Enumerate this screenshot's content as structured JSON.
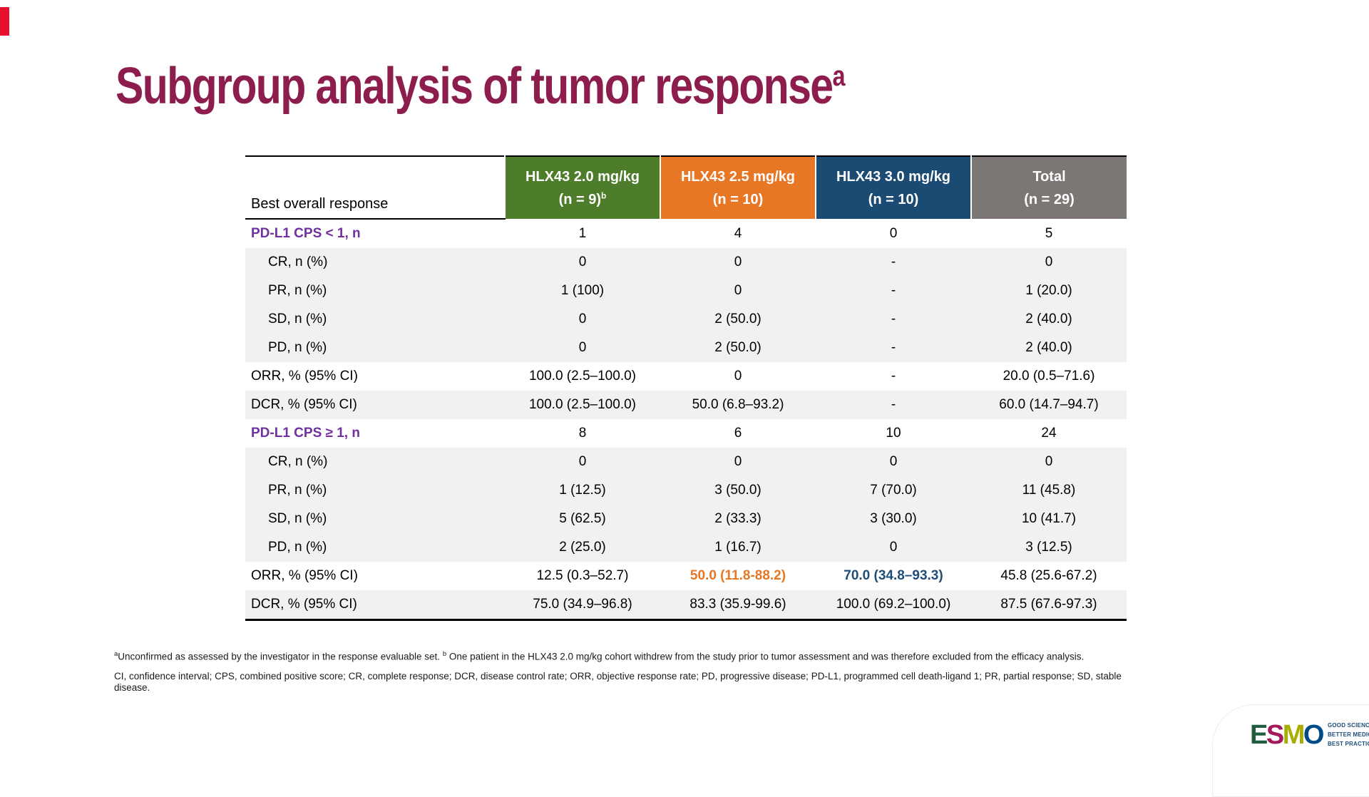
{
  "slide": {
    "title": "Subgroup analysis of tumor response",
    "title_superscript": "a",
    "title_color": "#8d1d4d",
    "accent_bar_color": "#e8112d"
  },
  "table": {
    "label_header": "Best overall response",
    "columns": [
      {
        "name": "HLX43 2.0 mg/kg",
        "n_label": "(n = 9)",
        "n_superscript": "b",
        "bg": "#4d7c2b"
      },
      {
        "name": "HLX43 2.5 mg/kg",
        "n_label": "(n = 10)",
        "n_superscript": "",
        "bg": "#e87725"
      },
      {
        "name": "HLX43 3.0 mg/kg",
        "n_label": "(n = 10)",
        "n_superscript": "",
        "bg": "#1b4a73"
      },
      {
        "name": "Total",
        "n_label": "(n = 29)",
        "n_superscript": "",
        "bg": "#7c7775"
      }
    ],
    "group_label_color": "#7030a0",
    "shaded_row_color": "#f1f1f1",
    "highlight_colors": {
      "orange": "#e87725",
      "blue": "#1f4e79"
    },
    "rows": [
      {
        "label": "PD-L1 CPS < 1, n",
        "type": "group",
        "shaded": false,
        "values": [
          "1",
          "4",
          "0",
          "5"
        ],
        "styles": [
          "",
          "",
          "",
          ""
        ]
      },
      {
        "label": "CR, n (%)",
        "type": "sub",
        "shaded": true,
        "values": [
          "0",
          "0",
          "-",
          "0"
        ],
        "styles": [
          "",
          "",
          "",
          ""
        ]
      },
      {
        "label": "PR, n (%)",
        "type": "sub",
        "shaded": true,
        "values": [
          "1 (100)",
          "0",
          "-",
          "1 (20.0)"
        ],
        "styles": [
          "",
          "",
          "",
          ""
        ]
      },
      {
        "label": "SD, n (%)",
        "type": "sub",
        "shaded": true,
        "values": [
          "0",
          "2 (50.0)",
          "-",
          "2 (40.0)"
        ],
        "styles": [
          "",
          "",
          "",
          ""
        ]
      },
      {
        "label": "PD, n (%)",
        "type": "sub",
        "shaded": true,
        "values": [
          "0",
          "2 (50.0)",
          "-",
          "2 (40.0)"
        ],
        "styles": [
          "",
          "",
          "",
          ""
        ]
      },
      {
        "label": "ORR, % (95% CI)",
        "type": "stat",
        "shaded": false,
        "values": [
          "100.0 (2.5–100.0)",
          "0",
          "-",
          "20.0 (0.5–71.6)"
        ],
        "styles": [
          "",
          "",
          "",
          ""
        ]
      },
      {
        "label": "DCR, % (95% CI)",
        "type": "stat",
        "shaded": true,
        "values": [
          "100.0 (2.5–100.0)",
          "50.0 (6.8–93.2)",
          "-",
          "60.0 (14.7–94.7)"
        ],
        "styles": [
          "",
          "",
          "",
          ""
        ]
      },
      {
        "label": "PD-L1 CPS ≥ 1, n",
        "type": "group",
        "shaded": false,
        "values": [
          "8",
          "6",
          "10",
          "24"
        ],
        "styles": [
          "",
          "",
          "",
          ""
        ]
      },
      {
        "label": "CR, n (%)",
        "type": "sub",
        "shaded": true,
        "values": [
          "0",
          "0",
          "0",
          "0"
        ],
        "styles": [
          "",
          "",
          "",
          ""
        ]
      },
      {
        "label": "PR, n (%)",
        "type": "sub",
        "shaded": true,
        "values": [
          "1 (12.5)",
          "3 (50.0)",
          "7 (70.0)",
          "11 (45.8)"
        ],
        "styles": [
          "",
          "",
          "",
          ""
        ]
      },
      {
        "label": "SD, n (%)",
        "type": "sub",
        "shaded": true,
        "values": [
          "5 (62.5)",
          "2 (33.3)",
          "3 (30.0)",
          "10 (41.7)"
        ],
        "styles": [
          "",
          "",
          "",
          ""
        ]
      },
      {
        "label": "PD, n (%)",
        "type": "sub",
        "shaded": true,
        "values": [
          "2 (25.0)",
          "1 (16.7)",
          "0",
          "3 (12.5)"
        ],
        "styles": [
          "",
          "",
          "",
          ""
        ]
      },
      {
        "label": "ORR, % (95% CI)",
        "type": "stat",
        "shaded": false,
        "values": [
          "12.5 (0.3–52.7)",
          "50.0 (11.8-88.2)",
          "70.0 (34.8–93.3)",
          "45.8 (25.6-67.2)"
        ],
        "styles": [
          "",
          "orange",
          "blue",
          ""
        ]
      },
      {
        "label": "DCR, % (95% CI)",
        "type": "stat",
        "shaded": true,
        "values": [
          "75.0 (34.9–96.8)",
          "83.3 (35.9-99.6)",
          "100.0 (69.2–100.0)",
          "87.5 (67.6-97.3)"
        ],
        "styles": [
          "",
          "",
          "",
          ""
        ]
      }
    ]
  },
  "footnotes": {
    "sup_a": "a",
    "line1_a": "Unconfirmed as assessed by the investigator in the response evaluable set. ",
    "sup_b": "b",
    "line1_b": " One patient in the HLX43 2.0 mg/kg cohort withdrew from the study prior to tumor assessment and was therefore excluded from the efficacy analysis.",
    "line2": "CI, confidence interval; CPS, combined positive score; CR, complete response; DCR, disease control rate; ORR, objective response rate; PD, progressive disease; PD-L1, programmed cell death-ligand 1; PR, partial response; SD, stable disease."
  },
  "logo": {
    "letters": [
      {
        "char": "E",
        "color": "#205c40"
      },
      {
        "char": "S",
        "color": "#a3195b"
      },
      {
        "char": "M",
        "color": "#a8ad00"
      },
      {
        "char": "O",
        "color": "#004b87"
      }
    ],
    "tagline": [
      "GOOD SCIENCE",
      "BETTER MEDICINE",
      "BEST PRACTICE"
    ],
    "tagline_color": "#1f4e79"
  }
}
